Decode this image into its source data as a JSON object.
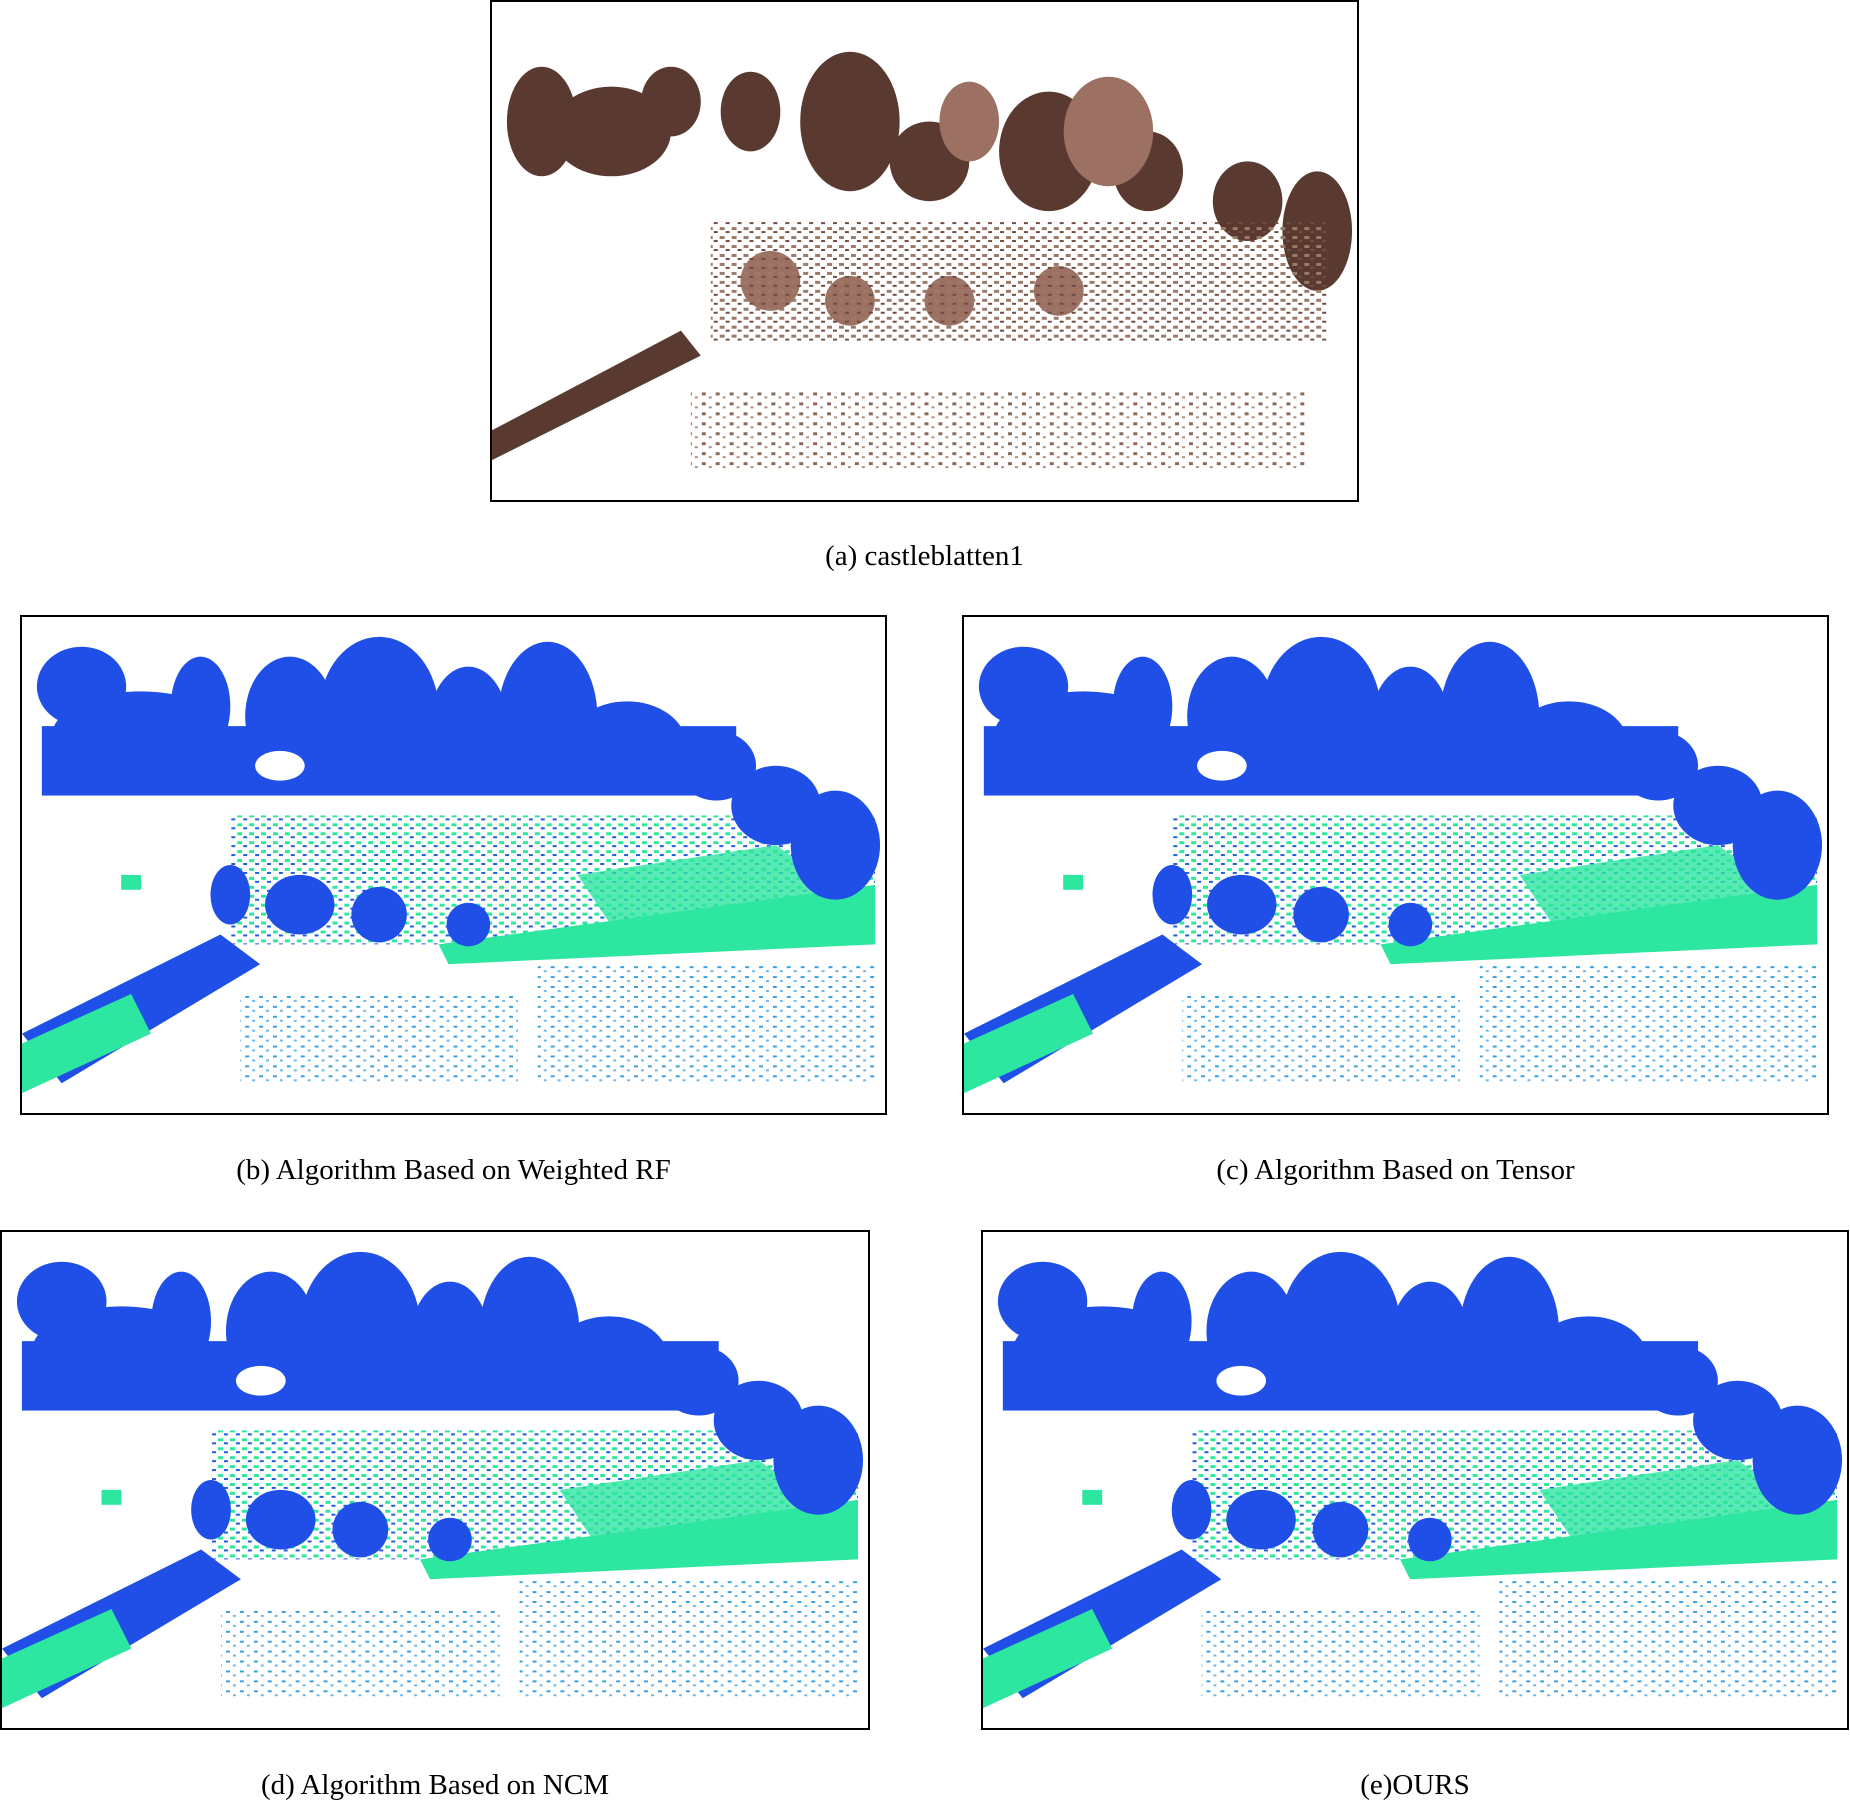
{
  "panels": [
    {
      "caption": "(a) castleblatten1"
    },
    {
      "caption": "(b) Algorithm Based on Weighted RF"
    },
    {
      "caption": "(c) Algorithm Based on Tensor"
    },
    {
      "caption": "(d) Algorithm Based on NCM"
    },
    {
      "caption": "(e)OURS"
    }
  ]
}
